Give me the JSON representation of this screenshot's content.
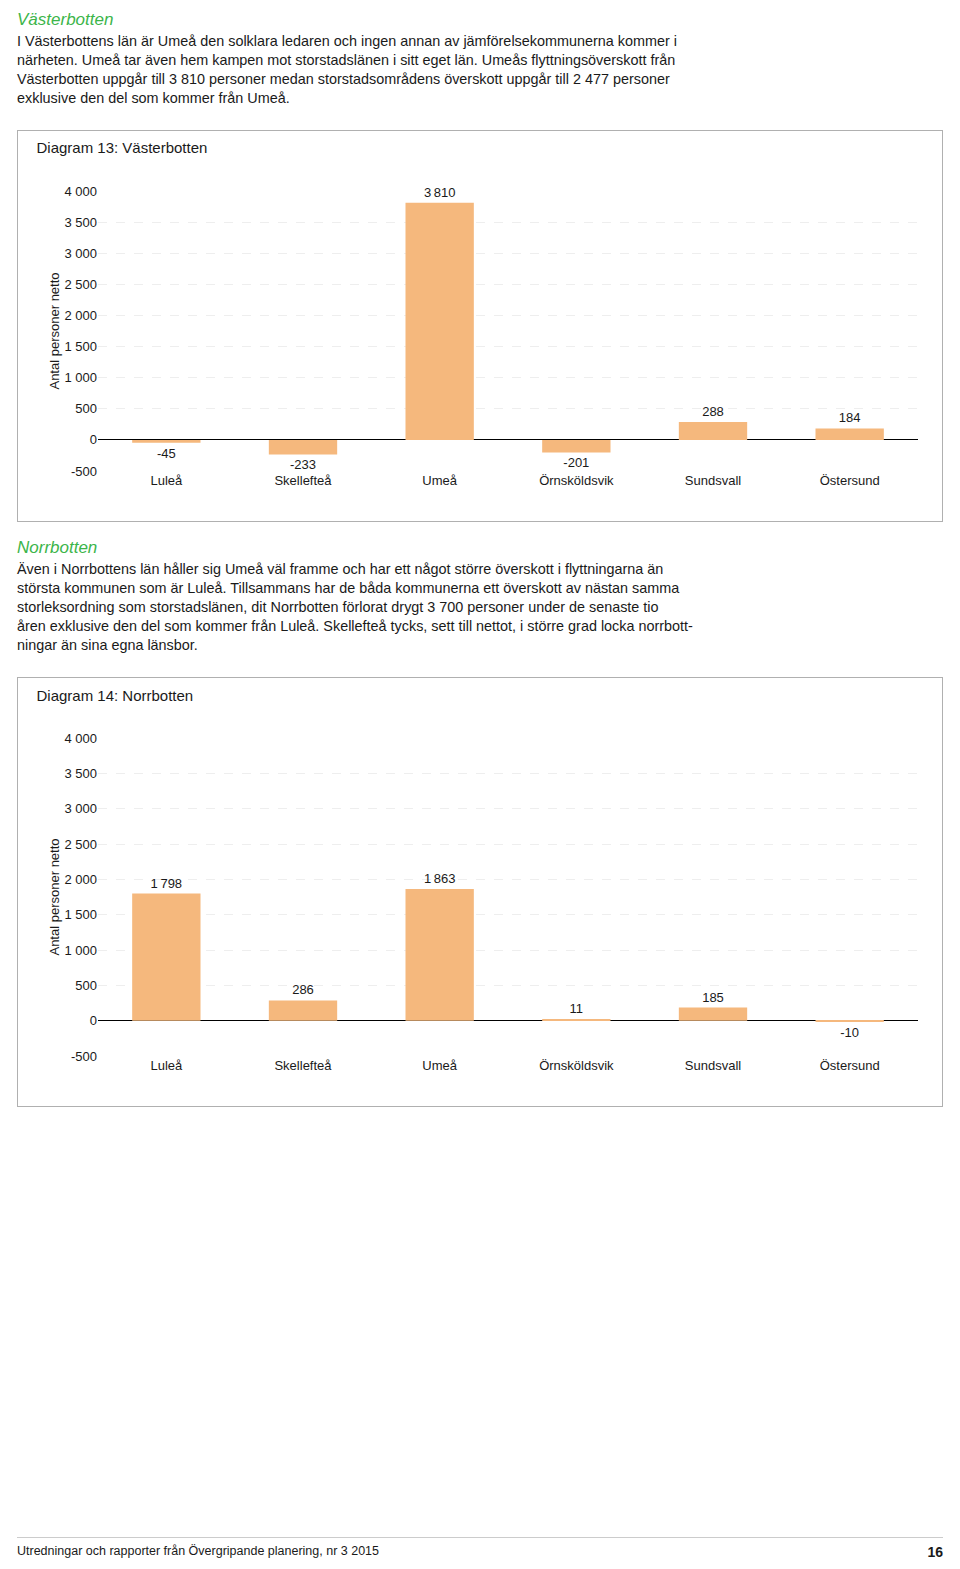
{
  "sections": [
    {
      "header": "Västerbotten",
      "header_color": "#3cb54a",
      "text": [
        "I Västerbottens län är Umeå den solklara ledaren och ingen annan av jämförelsekommunerna kommer i",
        "närheten. Umeå tar även hem kampen mot storstadslänen i sitt eget län. Umeås flyttningsöverskott från",
        "Västerbotten uppgår till 3 810 personer medan storstadsområdens överskott uppgår till 2 477 personer",
        "exklusive den del som kommer från Umeå."
      ]
    },
    {
      "header": "Norrbotten",
      "header_color": "#3cb54a",
      "text": [
        "Även i Norrbottens län håller sig Umeå väl framme och har ett något större överskott i flyttningarna än",
        "största kommunen som är Luleå. Tillsammans har de båda kommunerna ett överskott av nästan samma",
        "storleksordning som storstadslänen, dit Norrbotten förlorat drygt 3 700 personer under de senaste tio",
        "åren exklusive den del som kommer från Luleå. Skellefteå tycks, sett till nettot, i större grad locka norrbott-",
        "ningar än sina egna länsbor."
      ]
    }
  ],
  "chart_data": [
    {
      "type": "bar",
      "title": "Diagram 13: Västerbotten",
      "ylabel": "Antal personer netto",
      "categories": [
        "Luleå",
        "Skellefteå",
        "Umeå",
        "Örnsköldsvik",
        "Sundsvall",
        "Östersund"
      ],
      "values": [
        -45,
        -233,
        3810,
        -201,
        288,
        184
      ],
      "value_labels": [
        "-45",
        "-233",
        "3 810",
        "-201",
        "288",
        "184"
      ],
      "color": "#f5b87d",
      "ylim": [
        -500,
        4000
      ],
      "yticks": [
        -500,
        0,
        500,
        {
          "value": 1000,
          "label": "1 000"
        },
        {
          "value": 1500,
          "label": "1 500"
        },
        {
          "value": 2000,
          "label": "2 000"
        },
        {
          "value": 2500,
          "label": "2 500"
        },
        {
          "value": 3000,
          "label": "3 000"
        },
        {
          "value": 3500,
          "label": "3 500"
        },
        {
          "value": 4000,
          "label": "4 000"
        }
      ],
      "grid": true,
      "data_labels": true
    },
    {
      "type": "bar",
      "title": "Diagram 14: Norrbotten",
      "ylabel": "Antal personer netto",
      "categories": [
        "Luleå",
        "Skellefteå",
        "Umeå",
        "Örnsköldsvik",
        "Sundsvall",
        "Östersund"
      ],
      "values": [
        1798,
        286,
        1863,
        11,
        185,
        -10
      ],
      "value_labels": [
        "1 798",
        "286",
        "1 863",
        "11",
        "185",
        "-10"
      ],
      "color": "#f5b87d",
      "ylim": [
        -500,
        4000
      ],
      "yticks": [
        -500,
        0,
        500,
        {
          "value": 1000,
          "label": "1 000"
        },
        {
          "value": 1500,
          "label": "1 500"
        },
        {
          "value": 2000,
          "label": "2 000"
        },
        {
          "value": 2500,
          "label": "2 500"
        },
        {
          "value": 3000,
          "label": "3 000"
        },
        {
          "value": 3500,
          "label": "3 500"
        },
        {
          "value": 4000,
          "label": "4 000"
        }
      ],
      "grid": true,
      "data_labels": true
    }
  ],
  "footer": "Utredningar och rapporter från Övergripande planering, nr 3 2015",
  "page_number": "16"
}
